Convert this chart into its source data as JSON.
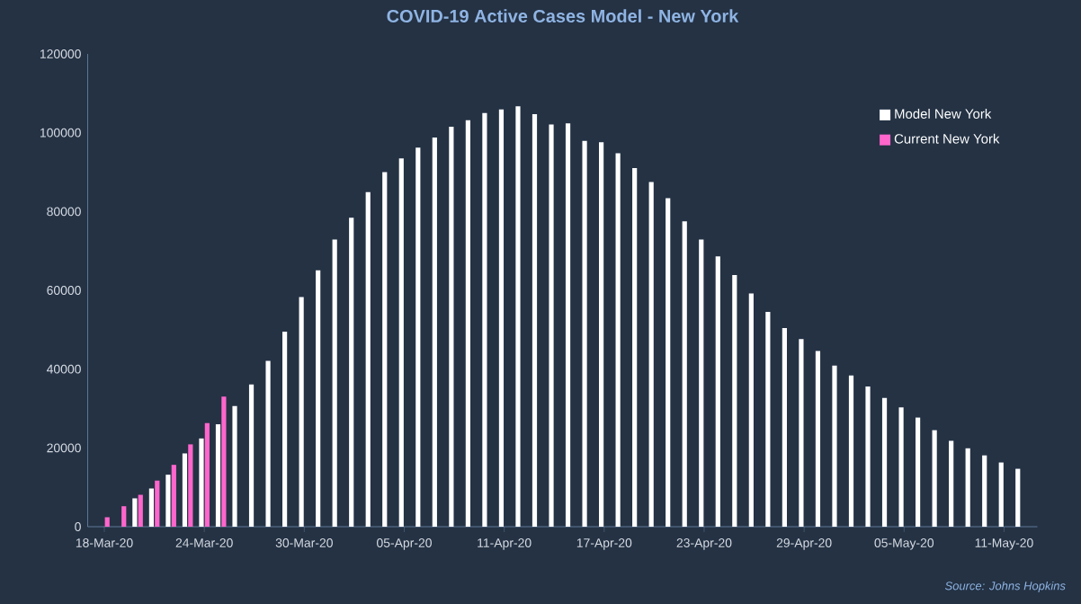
{
  "chart_data": {
    "type": "bar",
    "title": "COVID-19 Active Cases Model - New York",
    "categories": [
      "18-Mar-20",
      null,
      null,
      null,
      null,
      null,
      "24-Mar-20",
      null,
      null,
      null,
      null,
      null,
      "30-Mar-20",
      null,
      null,
      null,
      null,
      null,
      "05-Apr-20",
      null,
      null,
      null,
      null,
      null,
      "11-Apr-20",
      null,
      null,
      null,
      null,
      null,
      "17-Apr-20",
      null,
      null,
      null,
      null,
      null,
      "23-Apr-20",
      null,
      null,
      null,
      null,
      null,
      "29-Apr-20",
      null,
      null,
      null,
      null,
      null,
      "05-May-20",
      null,
      null,
      null,
      null,
      null,
      "11-May-20",
      null
    ],
    "series": [
      {
        "name": "Model New York",
        "color": "#ffffff",
        "values": [
          null,
          null,
          7200,
          9700,
          13200,
          18600,
          22400,
          26000,
          30600,
          36100,
          42100,
          49500,
          58300,
          65100,
          72900,
          78400,
          84900,
          90000,
          93500,
          96200,
          98800,
          101500,
          103200,
          105000,
          105900,
          106700,
          104700,
          102100,
          102400,
          97900,
          97600,
          94800,
          91000,
          87500,
          83400,
          77500,
          72900,
          68600,
          63900,
          59200,
          54500,
          50400,
          47600,
          44600,
          40900,
          38400,
          35600,
          32700,
          30300,
          27700,
          24500,
          21800,
          19900,
          18100,
          16300,
          14700
        ]
      },
      {
        "name": "Current New York",
        "color": "#ff66cc",
        "values": [
          2400,
          5200,
          8100,
          11700,
          15700,
          20900,
          26300,
          33000,
          null,
          null,
          null,
          null,
          null,
          null,
          null,
          null,
          null,
          null,
          null,
          null,
          null,
          null,
          null,
          null,
          null,
          null,
          null,
          null,
          null,
          null,
          null,
          null,
          null,
          null,
          null,
          null,
          null,
          null,
          null,
          null,
          null,
          null,
          null,
          null,
          null,
          null,
          null,
          null,
          null,
          null,
          null,
          null,
          null,
          null,
          null,
          null
        ]
      }
    ],
    "ylim": [
      0,
      120000
    ],
    "yticks": [
      0,
      20000,
      40000,
      60000,
      80000,
      100000,
      120000
    ],
    "grid": false,
    "legend": "top right",
    "annotations": [
      "Source: Johns Hopkins"
    ]
  }
}
